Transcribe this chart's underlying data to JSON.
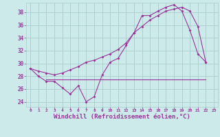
{
  "background_color": "#cceaea",
  "grid_color": "#aacccc",
  "line_color": "#993399",
  "xlabel": "Windchill (Refroidissement éolien,°C)",
  "xlabel_fontsize": 6.5,
  "yticks": [
    24,
    26,
    28,
    30,
    32,
    34,
    36,
    38
  ],
  "xticks": [
    0,
    1,
    2,
    3,
    4,
    5,
    6,
    7,
    8,
    9,
    10,
    11,
    12,
    13,
    14,
    15,
    16,
    17,
    18,
    19,
    20,
    21,
    22,
    23
  ],
  "xlim": [
    -0.5,
    23.5
  ],
  "ylim": [
    23.2,
    39.5
  ],
  "line1_x": [
    0,
    1,
    2,
    3,
    4,
    5,
    6,
    7,
    8,
    9,
    10,
    11,
    12,
    13,
    14,
    15,
    16,
    17,
    18,
    19,
    20,
    21,
    22
  ],
  "line1_y": [
    29.2,
    28.0,
    27.2,
    27.2,
    26.2,
    25.2,
    26.5,
    24.0,
    24.8,
    28.2,
    30.2,
    30.8,
    32.8,
    34.8,
    37.5,
    37.5,
    38.2,
    38.8,
    39.2,
    38.2,
    35.2,
    31.5,
    30.2
  ],
  "line2_x": [
    2,
    3,
    4,
    5,
    6,
    7,
    8,
    9,
    10,
    11,
    12,
    13,
    14,
    15,
    16,
    17,
    18,
    19,
    20,
    21,
    22
  ],
  "line2_y": [
    27.5,
    27.5,
    27.5,
    27.5,
    27.5,
    27.5,
    27.5,
    27.5,
    27.5,
    27.5,
    27.5,
    27.5,
    27.5,
    27.5,
    27.5,
    27.5,
    27.5,
    27.5,
    27.5,
    27.5,
    27.5
  ],
  "line3_x": [
    0,
    1,
    2,
    3,
    4,
    5,
    6,
    7,
    8,
    9,
    10,
    11,
    12,
    13,
    14,
    15,
    16,
    17,
    18,
    19,
    20,
    21,
    22
  ],
  "line3_y": [
    29.2,
    28.8,
    28.5,
    28.2,
    28.5,
    29.0,
    29.5,
    30.2,
    30.5,
    31.0,
    31.5,
    32.2,
    33.2,
    34.8,
    35.8,
    36.8,
    37.5,
    38.2,
    38.5,
    38.8,
    38.2,
    35.8,
    30.2
  ]
}
